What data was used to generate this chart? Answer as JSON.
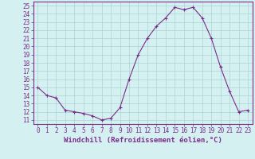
{
  "x": [
    0,
    1,
    2,
    3,
    4,
    5,
    6,
    7,
    8,
    9,
    10,
    11,
    12,
    13,
    14,
    15,
    16,
    17,
    18,
    19,
    20,
    21,
    22,
    23
  ],
  "y": [
    15,
    14,
    13.7,
    12.2,
    12,
    11.8,
    11.5,
    11,
    11.2,
    12.5,
    16,
    19,
    21,
    22.5,
    23.5,
    24.8,
    24.5,
    24.8,
    23.5,
    21,
    17.5,
    14.5,
    12,
    12.2
  ],
  "line_color": "#7b2d8b",
  "marker": "+",
  "bg_color": "#d4f0f0",
  "grid_color": "#aad4d4",
  "xlabel": "Windchill (Refroidissement éolien,°C)",
  "ylabel_ticks": [
    11,
    12,
    13,
    14,
    15,
    16,
    17,
    18,
    19,
    20,
    21,
    22,
    23,
    24,
    25
  ],
  "xlim": [
    -0.5,
    23.5
  ],
  "ylim": [
    10.5,
    25.5
  ],
  "xlabel_fontsize": 6.5,
  "tick_fontsize": 5.5,
  "spine_color": "#7b2d8b"
}
